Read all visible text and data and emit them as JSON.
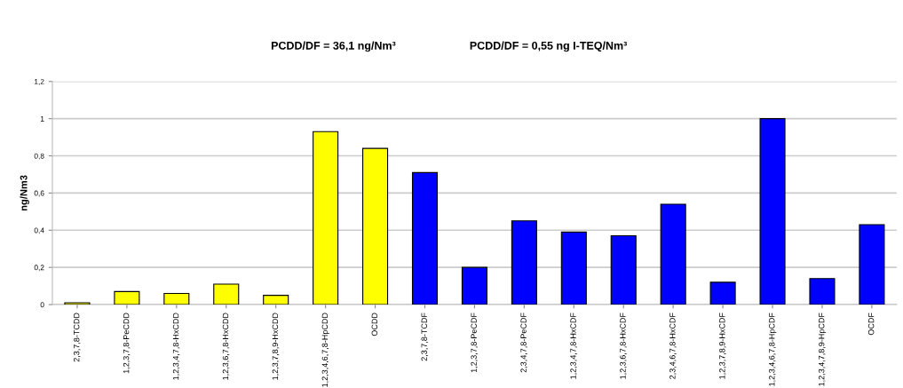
{
  "chart_data": {
    "type": "bar",
    "annotations": [
      "PCDD/DF = 36,1 ng/Nm³",
      "PCDD/DF = 0,55 ng I-TEQ/Nm³"
    ],
    "ylabel": "ng/Nm3",
    "categories": [
      "2,3,7,8-TCDD",
      "1,2,3,7,8-PeCDD",
      "1,2,3,4,7,8-HxCDD",
      "1,2,3,6,7,8-HxCDD",
      "1,2,3,7,8,9-HxCDD",
      "1,2,3,4,6,7,8-HpCDD",
      "OCDD",
      "2,3,7,8-TCDF",
      "1,2,3,7,8-PeCDF",
      "2,3,4,7,8-PeCDF",
      "1,2,3,4,7,8-HxCDF",
      "1,2,3,6,7,8-HxCDF",
      "2,3,4,6,7,8-HxCDF",
      "1,2,3,7,8,9-HxCDF",
      "1,2,3,4,6,7,8-HpCDF",
      "1,2,3,4,7,8,9-HpCDF",
      "OCDF"
    ],
    "values": [
      0.01,
      0.07,
      0.06,
      0.11,
      0.05,
      0.93,
      0.84,
      0.71,
      0.2,
      0.45,
      0.39,
      0.37,
      0.54,
      0.12,
      1.0,
      0.14,
      0.43
    ],
    "colors": [
      "#ffff00",
      "#ffff00",
      "#ffff00",
      "#ffff00",
      "#ffff00",
      "#ffff00",
      "#ffff00",
      "#0000ff",
      "#0000ff",
      "#0000ff",
      "#0000ff",
      "#0000ff",
      "#0000ff",
      "#0000ff",
      "#0000ff",
      "#0000ff",
      "#0000ff"
    ],
    "ylim": [
      0,
      1.2
    ],
    "yticks": [
      0,
      {
        "value": 0.2,
        "label": "0,2"
      },
      {
        "value": 0.4,
        "label": "0,4"
      },
      {
        "value": 0.6,
        "label": "0,6"
      },
      {
        "value": 0.8,
        "label": "0,8"
      },
      1,
      {
        "value": 1.2,
        "label": "1,2"
      }
    ],
    "grid": "y",
    "legend": false
  }
}
